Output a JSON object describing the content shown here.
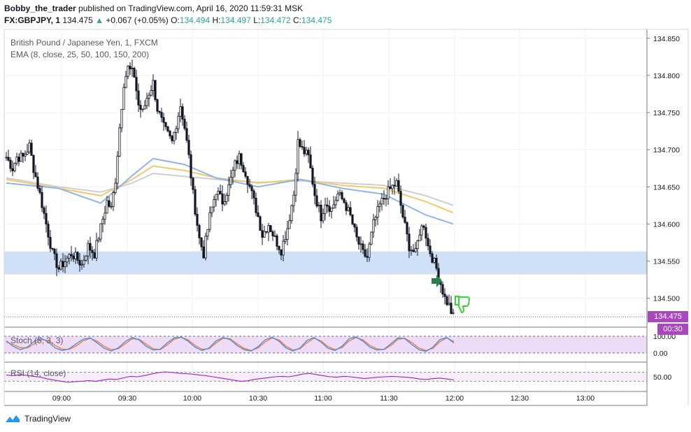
{
  "header": {
    "author": "Bobby_the_trader",
    "published": "published on TradingView.com, April 16, 2020 11:59:31 MSK",
    "symbol": "FX:GBPJPY, 1",
    "last": "134.475",
    "change": "+0.067 (+0.05%)",
    "o_label": "O:",
    "o": "134.494",
    "h_label": "H:",
    "h": "134.497",
    "l_label": "L:",
    "l": "134.472",
    "c_label": "C:",
    "c": "134.475"
  },
  "legend": {
    "instrument": "British Pound / Japanese Yen, 1, FXCM",
    "ema": "EMA (8, close, 25, 50, 100, 150, 200)",
    "stoch": "Stoch (5, 3, 3)",
    "rsi": "RSI (14, close)"
  },
  "price_badge": "134.475",
  "countdown_badge": "00:30",
  "footer": {
    "brand": "TradingView"
  },
  "colors": {
    "up": "#ffffff",
    "down": "#131722",
    "wick": "#131722",
    "ema_fast": "#90b4e8",
    "ema_mid": "#f2c96b",
    "ema_slow": "#cfcfcf",
    "zone": "#cfe0f7",
    "stoch_k": "#4a90e2",
    "stoch_d": "#f57c3b",
    "stoch_band": "#eedcf7",
    "rsi_line": "#9c27b0",
    "badge": "#ab47bc",
    "arrow": "#2e7d4f",
    "thumb": "#35d435"
  },
  "chart_data": {
    "type": "candlestick",
    "timeframe": "1 minute",
    "x_ticks": [
      "09:00",
      "09:30",
      "10:00",
      "10:30",
      "11:00",
      "11:30",
      "12:00",
      "12:30",
      "13:00"
    ],
    "y_ticks": [
      "134.850",
      "134.800",
      "134.750",
      "134.700",
      "134.650",
      "134.600",
      "134.550",
      "134.500"
    ],
    "y_range": [
      134.462,
      134.862
    ],
    "support_zone": [
      134.532,
      134.563
    ],
    "last_price": 134.475,
    "close_path": [
      [
        0,
        134.69
      ],
      [
        3,
        134.675
      ],
      [
        5,
        134.69
      ],
      [
        8,
        134.69
      ],
      [
        11,
        134.705
      ],
      [
        13,
        134.675
      ],
      [
        16,
        134.64
      ],
      [
        19,
        134.6
      ],
      [
        22,
        134.56
      ],
      [
        25,
        134.54
      ],
      [
        28,
        134.55
      ],
      [
        31,
        134.56
      ],
      [
        33,
        134.555
      ],
      [
        36,
        134.545
      ],
      [
        39,
        134.57
      ],
      [
        42,
        134.56
      ],
      [
        45,
        134.595
      ],
      [
        48,
        134.63
      ],
      [
        50,
        134.62
      ],
      [
        52,
        134.66
      ],
      [
        54,
        134.73
      ],
      [
        56,
        134.79
      ],
      [
        58,
        134.81
      ],
      [
        61,
        134.8
      ],
      [
        63,
        134.76
      ],
      [
        65,
        134.75
      ],
      [
        67,
        134.77
      ],
      [
        70,
        134.79
      ],
      [
        72,
        134.755
      ],
      [
        75,
        134.73
      ],
      [
        77,
        134.72
      ],
      [
        79,
        134.71
      ],
      [
        81,
        134.735
      ],
      [
        83,
        134.76
      ],
      [
        85,
        134.73
      ],
      [
        87,
        134.69
      ],
      [
        89,
        134.64
      ],
      [
        92,
        134.58
      ],
      [
        94,
        134.56
      ],
      [
        97,
        134.61
      ],
      [
        100,
        134.645
      ],
      [
        103,
        134.63
      ],
      [
        106,
        134.65
      ],
      [
        109,
        134.68
      ],
      [
        111,
        134.69
      ],
      [
        114,
        134.67
      ],
      [
        117,
        134.64
      ],
      [
        120,
        134.61
      ],
      [
        122,
        134.585
      ],
      [
        125,
        134.6
      ],
      [
        128,
        134.58
      ],
      [
        131,
        134.565
      ],
      [
        134,
        134.595
      ],
      [
        137,
        134.64
      ],
      [
        139,
        134.71
      ],
      [
        141,
        134.7
      ],
      [
        144,
        134.69
      ],
      [
        147,
        134.64
      ],
      [
        150,
        134.61
      ],
      [
        152,
        134.63
      ],
      [
        155,
        134.62
      ],
      [
        158,
        134.64
      ],
      [
        161,
        134.63
      ],
      [
        164,
        134.61
      ],
      [
        167,
        134.58
      ],
      [
        170,
        134.56
      ],
      [
        172,
        134.555
      ],
      [
        175,
        134.6
      ],
      [
        178,
        134.625
      ],
      [
        181,
        134.64
      ],
      [
        184,
        134.65
      ],
      [
        186,
        134.655
      ],
      [
        189,
        134.61
      ],
      [
        192,
        134.57
      ],
      [
        195,
        134.56
      ],
      [
        197,
        134.59
      ],
      [
        199,
        134.6
      ],
      [
        201,
        134.57
      ],
      [
        203,
        134.555
      ],
      [
        205,
        134.54
      ],
      [
        207,
        134.52
      ],
      [
        209,
        134.5
      ],
      [
        211,
        134.49
      ],
      [
        212,
        134.482
      ],
      [
        213,
        134.475
      ]
    ],
    "ema_fast": [
      [
        0,
        134.655
      ],
      [
        25,
        134.648
      ],
      [
        45,
        134.628
      ],
      [
        60,
        134.665
      ],
      [
        70,
        134.688
      ],
      [
        85,
        134.68
      ],
      [
        100,
        134.662
      ],
      [
        120,
        134.65
      ],
      [
        140,
        134.66
      ],
      [
        160,
        134.648
      ],
      [
        180,
        134.64
      ],
      [
        200,
        134.612
      ],
      [
        213,
        134.6
      ]
    ],
    "ema_mid": [
      [
        0,
        134.66
      ],
      [
        25,
        134.648
      ],
      [
        45,
        134.638
      ],
      [
        60,
        134.66
      ],
      [
        70,
        134.678
      ],
      [
        85,
        134.672
      ],
      [
        100,
        134.662
      ],
      [
        120,
        134.655
      ],
      [
        140,
        134.66
      ],
      [
        160,
        134.652
      ],
      [
        180,
        134.648
      ],
      [
        200,
        134.63
      ],
      [
        213,
        134.615
      ]
    ],
    "ema_slow": [
      [
        0,
        134.662
      ],
      [
        25,
        134.65
      ],
      [
        45,
        134.643
      ],
      [
        60,
        134.655
      ],
      [
        70,
        134.668
      ],
      [
        85,
        134.664
      ],
      [
        100,
        134.66
      ],
      [
        120,
        134.656
      ],
      [
        140,
        134.658
      ],
      [
        160,
        134.655
      ],
      [
        180,
        134.652
      ],
      [
        200,
        134.638
      ],
      [
        213,
        134.625
      ]
    ],
    "stochastic": {
      "levels": [
        0,
        100
      ],
      "k": [
        72,
        40,
        20,
        35,
        70,
        88,
        65,
        30,
        15,
        25,
        55,
        82,
        90,
        60,
        28,
        12,
        30,
        68,
        92,
        78,
        40,
        18,
        22,
        60,
        90,
        95,
        70,
        35,
        15,
        30,
        72,
        92,
        80,
        45,
        20,
        12,
        38,
        78,
        94,
        70,
        30,
        12,
        30,
        75,
        92,
        65,
        28,
        15,
        40,
        85,
        96,
        70,
        35,
        18,
        22,
        55,
        90,
        85,
        50,
        20,
        10,
        35,
        80,
        92,
        60
      ],
      "d": [
        65,
        50,
        32,
        30,
        55,
        80,
        75,
        45,
        22,
        22,
        42,
        72,
        88,
        70,
        40,
        20,
        25,
        55,
        85,
        82,
        52,
        25,
        20,
        48,
        82,
        94,
        78,
        45,
        22,
        25,
        60,
        88,
        85,
        55,
        28,
        15,
        30,
        65,
        90,
        78,
        40,
        18,
        25,
        62,
        88,
        72,
        38,
        20,
        32,
        72,
        92,
        78,
        45,
        25,
        20,
        45,
        82,
        88,
        62,
        30,
        15,
        28,
        68,
        90,
        68
      ]
    },
    "rsi": {
      "levels": [
        30,
        70
      ],
      "tick": "50.00",
      "values": [
        58,
        55,
        60,
        56,
        52,
        48,
        40,
        35,
        30,
        25,
        28,
        30,
        33,
        30,
        35,
        40,
        38,
        45,
        52,
        50,
        55,
        62,
        68,
        72,
        70,
        66,
        64,
        62,
        58,
        55,
        50,
        45,
        40,
        35,
        30,
        32,
        38,
        42,
        46,
        50,
        52,
        50,
        55,
        62,
        65,
        60,
        55,
        50,
        48,
        52,
        50,
        46,
        42,
        45,
        48,
        50,
        52,
        50,
        48,
        45,
        40,
        38,
        42,
        44,
        40,
        36
      ]
    }
  }
}
